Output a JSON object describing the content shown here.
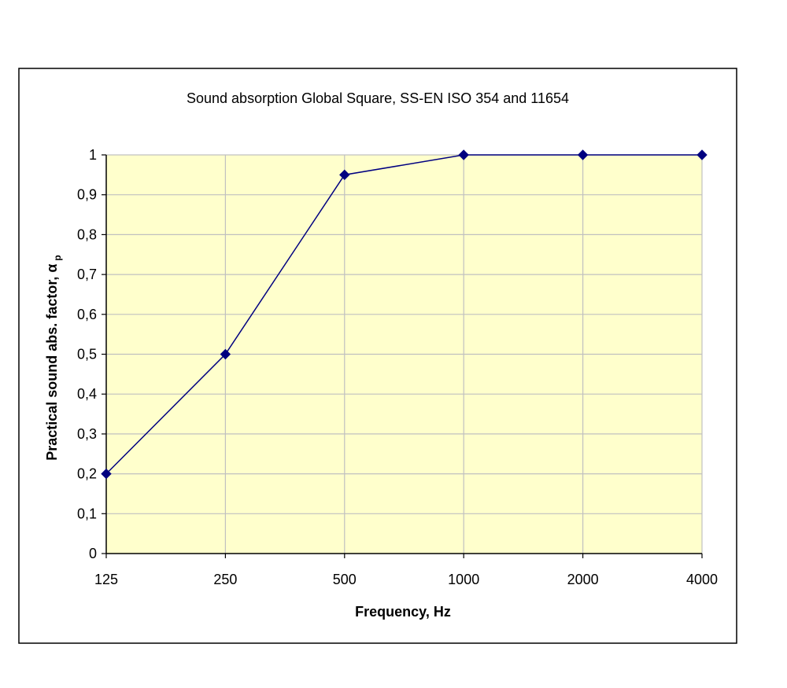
{
  "chart_data": {
    "type": "line",
    "title": "Sound absorption Global Square, SS-EN ISO 354 and 11654",
    "xlabel": "Frequency, Hz",
    "ylabel": "Practical sound abs. factor, α",
    "ylabel_subscript": "p",
    "categories": [
      "125",
      "250",
      "500",
      "1000",
      "2000",
      "4000"
    ],
    "values": [
      0.2,
      0.5,
      0.95,
      1.0,
      1.0,
      1.0
    ],
    "ylim": [
      0,
      1
    ],
    "yticks": [
      0,
      0.1,
      0.2,
      0.3,
      0.4,
      0.5,
      0.6,
      0.7,
      0.8,
      0.9,
      1
    ],
    "ytick_labels": [
      "0",
      "0,1",
      "0,2",
      "0,3",
      "0,4",
      "0,5",
      "0,6",
      "0,7",
      "0,8",
      "0,9",
      "1"
    ],
    "grid": true,
    "legend": "none",
    "colors": {
      "plot_background": "#ffffcc",
      "line": "#000080",
      "grid": "#c0c0c0",
      "frame": "#000000"
    }
  }
}
